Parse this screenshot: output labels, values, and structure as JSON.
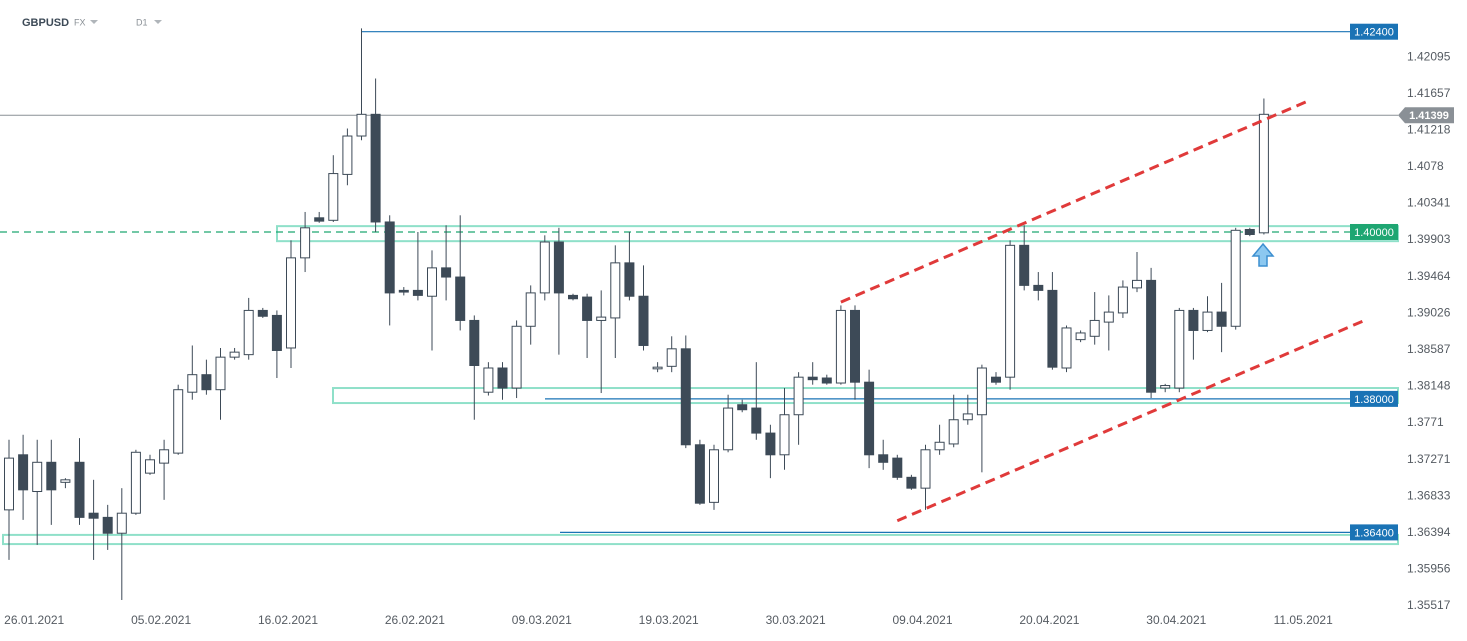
{
  "chart_data": {
    "type": "candlestick",
    "title": "GBPUSD",
    "market": "FX",
    "interval": "D1",
    "categories": [
      null,
      null,
      "26.01.2021",
      null,
      null,
      null,
      null,
      null,
      null,
      null,
      null,
      "05.02.2021",
      null,
      null,
      null,
      null,
      null,
      null,
      null,
      null,
      "16.02.2021",
      null,
      null,
      null,
      null,
      null,
      null,
      null,
      null,
      "26.02.2021",
      null,
      null,
      null,
      null,
      null,
      null,
      null,
      null,
      "09.03.2021",
      null,
      null,
      null,
      null,
      null,
      null,
      null,
      null,
      "19.03.2021",
      null,
      null,
      null,
      null,
      null,
      null,
      null,
      null,
      "30.03.2021",
      null,
      null,
      null,
      null,
      null,
      null,
      null,
      null,
      "09.04.2021",
      null,
      null,
      null,
      null,
      null,
      null,
      null,
      null,
      "20.04.2021",
      null,
      null,
      null,
      null,
      null,
      null,
      null,
      null,
      "30.04.2021",
      null,
      null,
      null,
      null,
      null,
      null,
      null,
      null,
      "11.05.2021"
    ],
    "open": [
      1.3667,
      1.3733,
      1.3689,
      1.3724,
      1.37,
      1.3724,
      1.3663,
      1.3658,
      1.3639,
      1.3663,
      1.3711,
      1.3723,
      1.3735,
      1.3808,
      1.3829,
      1.3811,
      1.385,
      1.3853,
      1.3906,
      1.39,
      1.3861,
      1.3969,
      1.4017,
      1.4014,
      1.4069,
      1.4115,
      1.4141,
      1.4012,
      1.393,
      1.393,
      1.3923,
      1.3957,
      1.3946,
      1.3894,
      1.3808,
      1.3837,
      1.3813,
      1.3887,
      1.3927,
      1.3988,
      1.3924,
      1.3922,
      1.3894,
      1.3897,
      1.3963,
      1.3923,
      1.3836,
      1.3839,
      1.386,
      1.3745,
      1.3676,
      1.3739,
      1.3793,
      1.3789,
      1.3759,
      1.3733,
      1.3781,
      1.3826,
      1.3825,
      1.3819,
      1.3906,
      1.382,
      1.3733,
      1.3729,
      1.3706,
      1.3693,
      1.3739,
      1.3746,
      1.3775,
      1.3781,
      1.3826,
      1.3826,
      1.3984,
      1.3936,
      1.393,
      1.3837,
      1.3871,
      1.3875,
      1.3892,
      1.3903,
      1.3933,
      1.3942,
      1.3813,
      1.3813,
      1.3906,
      1.3882,
      1.3904,
      1.3887,
      1.4003,
      1.3999,
      null,
      null,
      null
    ],
    "high": [
      1.3751,
      1.3757,
      1.3751,
      1.3751,
      1.3705,
      1.3753,
      1.3703,
      1.3673,
      1.3693,
      1.3739,
      1.3733,
      1.3751,
      1.3817,
      1.3864,
      1.3847,
      1.3861,
      1.3861,
      1.3921,
      1.3909,
      1.3906,
      1.399,
      1.4024,
      1.4024,
      1.4092,
      1.4124,
      1.4244,
      1.4184,
      1.402,
      1.3934,
      1.4,
      1.3978,
      1.4008,
      1.402,
      1.39,
      1.3844,
      1.3844,
      1.3894,
      1.3936,
      1.3996,
      1.4005,
      1.3926,
      1.3926,
      1.393,
      1.3984,
      1.4,
      1.396,
      1.3844,
      1.3875,
      1.3876,
      1.3751,
      1.3745,
      1.3805,
      1.3799,
      1.3844,
      1.3769,
      1.3813,
      1.3832,
      1.3844,
      1.3829,
      1.3912,
      1.3912,
      1.3835,
      1.3751,
      1.3733,
      1.3709,
      1.3745,
      1.3769,
      1.3805,
      1.3805,
      1.3841,
      1.3832,
      1.399,
      1.4008,
      1.3952,
      1.3952,
      1.3888,
      1.3882,
      1.3928,
      1.3924,
      1.3942,
      1.3976,
      1.3957,
      1.3818,
      1.3909,
      1.3909,
      1.3923,
      1.3939,
      1.4005,
      1.4005,
      1.416,
      null,
      null,
      null
    ],
    "low": [
      1.3607,
      1.3655,
      1.3625,
      1.3649,
      1.3693,
      1.3649,
      1.3607,
      1.3619,
      1.3559,
      1.3661,
      1.3709,
      1.3679,
      1.3733,
      1.3799,
      1.3805,
      1.3775,
      1.3847,
      1.3847,
      1.3897,
      1.3825,
      1.3837,
      1.3952,
      1.4011,
      1.4012,
      1.4056,
      1.411,
      1.4,
      1.3888,
      1.3924,
      1.3918,
      1.3858,
      1.3918,
      1.3882,
      1.3775,
      1.3804,
      1.3799,
      1.3801,
      1.3865,
      1.3918,
      1.3853,
      1.3918,
      1.3849,
      1.3807,
      1.3849,
      1.3918,
      1.3858,
      1.3832,
      1.3832,
      1.3741,
      1.3673,
      1.3667,
      1.3736,
      1.3784,
      1.3751,
      1.3705,
      1.3715,
      1.3745,
      1.3817,
      1.3817,
      1.3817,
      1.3799,
      1.3717,
      1.3715,
      1.3703,
      1.3691,
      1.3667,
      1.3733,
      1.3742,
      1.3769,
      1.3712,
      1.3817,
      1.3811,
      1.393,
      1.3918,
      1.3835,
      1.3832,
      1.3868,
      1.3865,
      1.3858,
      1.3897,
      1.3928,
      1.3801,
      1.3808,
      1.3808,
      1.3847,
      1.388,
      1.3856,
      1.3883,
      1.3995,
      1.3997,
      null,
      null,
      null
    ],
    "close": [
      1.3729,
      1.3691,
      1.3724,
      1.3691,
      1.3703,
      1.3658,
      1.3657,
      1.3639,
      1.3663,
      1.3736,
      1.3727,
      1.3739,
      1.3811,
      1.3829,
      1.3811,
      1.385,
      1.3856,
      1.3906,
      1.3899,
      1.3858,
      1.3969,
      1.4005,
      1.4013,
      1.407,
      1.4115,
      1.4141,
      1.4012,
      1.3927,
      1.3928,
      1.3924,
      1.3957,
      1.3946,
      1.3894,
      1.384,
      1.3837,
      1.3813,
      1.3887,
      1.3927,
      1.3988,
      1.3927,
      1.392,
      1.3894,
      1.3898,
      1.3963,
      1.3923,
      1.3864,
      1.3838,
      1.386,
      1.3745,
      1.3675,
      1.3739,
      1.3789,
      1.3787,
      1.3759,
      1.3733,
      1.3781,
      1.3826,
      1.3823,
      1.3819,
      1.3906,
      1.382,
      1.3733,
      1.3724,
      1.3706,
      1.3693,
      1.3739,
      1.3748,
      1.3775,
      1.3782,
      1.3837,
      1.382,
      1.3984,
      1.3936,
      1.393,
      1.3838,
      1.3885,
      1.3879,
      1.3894,
      1.3904,
      1.3934,
      1.3942,
      1.3808,
      1.3816,
      1.3906,
      1.3882,
      1.3904,
      1.3887,
      1.4002,
      1.3997,
      1.4141,
      null,
      null,
      null
    ],
    "up_color": "#ffffff",
    "down_color": "#3d4a57",
    "ylim": [
      1.3547,
      1.4278
    ],
    "yticks": [
      1.42095,
      1.41657,
      1.41218,
      1.4078,
      1.40341,
      1.39903,
      1.39464,
      1.39026,
      1.38587,
      1.38148,
      1.3771,
      1.37271,
      1.36833,
      1.36394,
      1.35956,
      1.35517
    ],
    "grid": false,
    "levels": [
      {
        "value": 1.424,
        "label": "1.42400",
        "color": "#1a73b5",
        "dashed": false
      },
      {
        "value": 1.4,
        "label": "1.40000",
        "color": "#1ea672",
        "dashed": true
      },
      {
        "value": 1.38,
        "label": "1.38000",
        "color": "#1a73b5",
        "dashed": false
      },
      {
        "value": 1.364,
        "label": "1.36400",
        "color": "#1a73b5",
        "dashed": false
      }
    ],
    "current_price": {
      "value": 1.41399,
      "label": "1.41399",
      "color": "#8a9096"
    },
    "zones": [
      {
        "low": 1.3989,
        "high": 1.4007
      },
      {
        "low": 1.3795,
        "high": 1.3813
      },
      {
        "low": 1.3626,
        "high": 1.3637
      }
    ],
    "zone_color": "#8fe0c9",
    "trendlines": [
      {
        "x": [
          59,
          92
        ],
        "y": [
          1.3916,
          1.4156
        ]
      },
      {
        "x": [
          63,
          96
        ],
        "y": [
          1.3654,
          1.3893
        ]
      }
    ],
    "trendline_color": "#e03a3a"
  }
}
